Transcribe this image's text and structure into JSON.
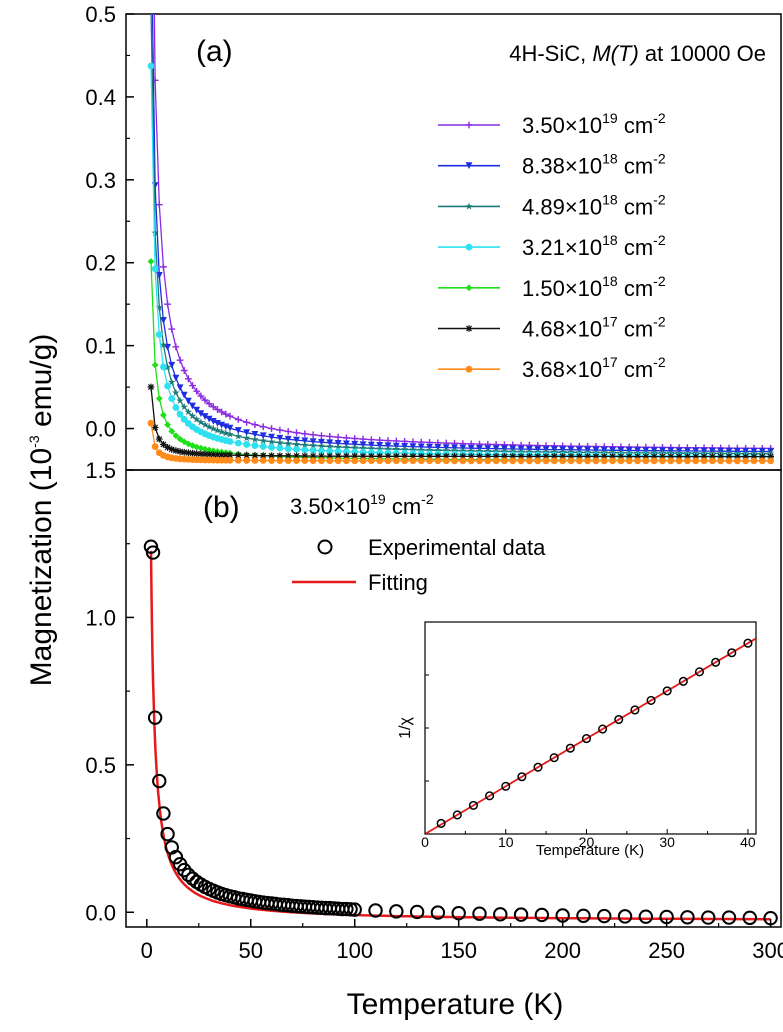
{
  "chart_data": [
    {
      "type": "line",
      "panel": "(a)",
      "annotation": {
        "prefix": "4H-SiC, ",
        "italic": "M(T)",
        "suffix": " at 10000 Oe"
      },
      "xlim": [
        -10,
        305
      ],
      "ylim": [
        -0.05,
        0.5
      ],
      "yticks": [
        "0.0",
        "0.1",
        "0.2",
        "0.3",
        "0.4",
        "0.5"
      ],
      "legend_position": "top-right",
      "series": [
        {
          "base": "3.50×10",
          "exp": "19",
          "unit": " cm",
          "unitexp": "-2",
          "color": "#8a2be2",
          "marker": "plus",
          "A": 1.8,
          "p": 1.0,
          "c": -0.03
        },
        {
          "base": "8.38×10",
          "exp": "18",
          "unit": " cm",
          "unitexp": "-2",
          "color": "#1f2ee0",
          "marker": "tri-down",
          "A": 1.3,
          "p": 1.0,
          "c": -0.032
        },
        {
          "base": "4.89×10",
          "exp": "18",
          "unit": " cm",
          "unitexp": "-2",
          "color": "#1e7a78",
          "marker": "star",
          "A": 1.08,
          "p": 1.0,
          "c": -0.034
        },
        {
          "base": "3.21×10",
          "exp": "18",
          "unit": " cm",
          "unitexp": "-2",
          "color": "#2fe0f0",
          "marker": "circle",
          "A": 0.98,
          "p": 1.05,
          "c": -0.036
        },
        {
          "base": "1.50×10",
          "exp": "18",
          "unit": " cm",
          "unitexp": "-2",
          "color": "#1ee018",
          "marker": "diamond",
          "A": 0.5,
          "p": 1.05,
          "c": -0.04
        },
        {
          "base": "4.68×10",
          "exp": "17",
          "unit": " cm",
          "unitexp": "-2",
          "color": "#111111",
          "marker": "asterisk",
          "A": 0.2,
          "p": 1.25,
          "c": -0.034
        },
        {
          "base": "3.68×10",
          "exp": "17",
          "unit": " cm",
          "unitexp": "-2",
          "color": "#ff8c1a",
          "marker": "circle",
          "A": 0.12,
          "p": 1.4,
          "c": -0.039
        }
      ]
    },
    {
      "type": "scatter",
      "panel": "(b)",
      "sample": {
        "base": "3.50×10",
        "exp": "19",
        "unit": " cm",
        "unitexp": "-2"
      },
      "legend": {
        "experimental": "Experimental data",
        "fitting": "Fitting"
      },
      "xlabel": "Temperature (K)",
      "ylabel": {
        "pre": "Magnetization (10",
        "exp": "-3",
        "post": " emu/g)"
      },
      "xlim": [
        -10,
        305
      ],
      "ylim": [
        -0.05,
        1.5
      ],
      "xticks": [
        "0",
        "50",
        "100",
        "150",
        "200",
        "250",
        "300"
      ],
      "yticks": [
        "0.0",
        "0.5",
        "1.0",
        "1.5"
      ],
      "experimental": {
        "x": [
          2,
          3,
          4,
          6,
          8,
          10,
          12,
          14,
          16,
          18,
          20,
          22,
          24,
          26,
          28,
          30,
          32,
          34,
          36,
          38,
          40,
          42,
          44,
          46,
          48,
          50,
          52,
          54,
          56,
          58,
          60,
          62,
          64,
          66,
          68,
          70,
          72,
          74,
          76,
          78,
          80,
          82,
          84,
          86,
          88,
          90,
          92,
          94,
          96,
          98,
          100,
          110,
          120,
          130,
          140,
          150,
          160,
          170,
          180,
          190,
          200,
          210,
          220,
          230,
          240,
          250,
          260,
          270,
          280,
          290,
          300
        ],
        "y": [
          1.24,
          1.22,
          0.66,
          0.445,
          0.335,
          0.265,
          0.22,
          0.187,
          0.163,
          0.143,
          0.127,
          0.114,
          0.103,
          0.094,
          0.086,
          0.079,
          0.073,
          0.067,
          0.062,
          0.058,
          0.054,
          0.051,
          0.047,
          0.045,
          0.042,
          0.04,
          0.037,
          0.035,
          0.033,
          0.031,
          0.03,
          0.028,
          0.026,
          0.025,
          0.024,
          0.022,
          0.021,
          0.02,
          0.019,
          0.018,
          0.017,
          0.016,
          0.015,
          0.014,
          0.014,
          0.013,
          0.012,
          0.011,
          0.011,
          0.01,
          0.009,
          0.006,
          0.003,
          0.001,
          -0.001,
          -0.003,
          -0.005,
          -0.007,
          -0.008,
          -0.009,
          -0.011,
          -0.012,
          -0.013,
          -0.014,
          -0.015,
          -0.016,
          -0.017,
          -0.018,
          -0.018,
          -0.019,
          -0.02
        ]
      },
      "fit": {
        "A": 2.6,
        "p": 1.05,
        "c": -0.03
      },
      "inset": {
        "xlabel": "Temperature (K)",
        "ylabel": "1/χ",
        "xlim": [
          0,
          41
        ],
        "xticks": [
          "0",
          "10",
          "20",
          "30",
          "40"
        ],
        "x": [
          2,
          4,
          6,
          8,
          10,
          12,
          14,
          16,
          18,
          20,
          22,
          24,
          26,
          28,
          30,
          32,
          34,
          36,
          38,
          40
        ],
        "y": [
          0.05,
          0.09,
          0.135,
          0.18,
          0.225,
          0.27,
          0.315,
          0.36,
          0.405,
          0.45,
          0.495,
          0.54,
          0.585,
          0.63,
          0.675,
          0.72,
          0.765,
          0.81,
          0.855,
          0.9
        ],
        "ylim": [
          0,
          1
        ]
      }
    }
  ]
}
